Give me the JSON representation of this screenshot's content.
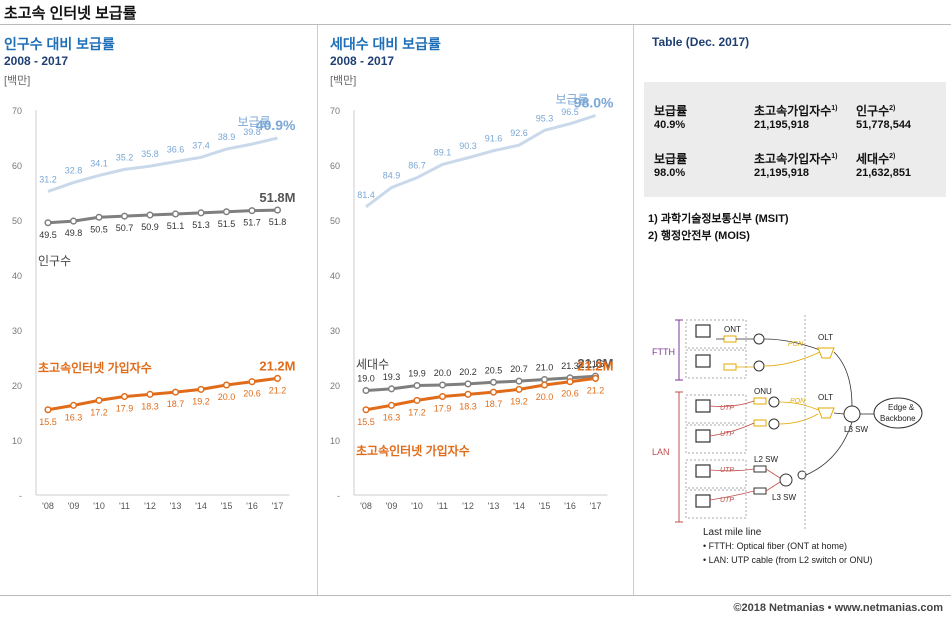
{
  "title": "초고속 인터넷 보급률",
  "left_panel": {
    "title": "인구수 대비 보급률",
    "subtitle": "2008 - 2017",
    "unit": "[백만]"
  },
  "mid_panel": {
    "title": "세대수 대비 보급률",
    "subtitle": "2008 - 2017",
    "unit": "[백만]"
  },
  "table": {
    "title": "Table (Dec. 2017)",
    "row1": {
      "rate_label": "보급률",
      "rate": "40.9%",
      "subs_label": "초고속가입자수",
      "subs_sup": "1)",
      "subs": "21,195,918",
      "base_label": "인구수",
      "base_sup": "2)",
      "base": "51,778,544"
    },
    "row2": {
      "rate_label": "보급률",
      "rate": "98.0%",
      "subs_label": "초고속가입자수",
      "subs_sup": "1)",
      "subs": "21,195,918",
      "base_label": "세대수",
      "base_sup": "2)",
      "base": "21,632,851"
    },
    "footnote1": "1) 과학기술정보통신부 (MSIT)",
    "footnote2": "2) 행정안전부 (MOIS)"
  },
  "diagram": {
    "ftth": "FTTH",
    "lan": "LAN",
    "ont": "ONT",
    "onu": "ONU",
    "olt": "OLT",
    "pon": "PON",
    "utp": "UTP",
    "l2sw": "L2 SW",
    "l3sw": "L3 SW",
    "edge": "Edge &",
    "backbone": "Backbone",
    "legend_title": "Last mile line",
    "legend_1": "• FTTH: Optical fiber (ONT at home)",
    "legend_2": "• LAN: UTP cable (from L2 switch or ONU)"
  },
  "copyright": "©2018 Netmanias • www.netmanias.com",
  "colors": {
    "blue": "#1f6fb8",
    "light_blue": "#c9d9ea",
    "gray": "#7f7f7f",
    "orange": "#e06c1a",
    "rate_label": "#7aa7d6"
  },
  "chart_data": [
    {
      "type": "line",
      "title": "인구수 대비 보급률",
      "x": [
        "'08",
        "'09",
        "'10",
        "'11",
        "'12",
        "'13",
        "'14",
        "'15",
        "'16",
        "'17"
      ],
      "ylim": [
        0,
        70
      ],
      "yticks": [
        "-",
        "10",
        "20",
        "30",
        "40",
        "50",
        "60",
        "70"
      ],
      "series": [
        {
          "name": "보급률",
          "values": [
            31.2,
            32.8,
            34.1,
            35.2,
            35.8,
            36.6,
            37.4,
            38.9,
            39.8,
            40.9
          ],
          "end_label": "40.9%",
          "plot_offset": 24
        },
        {
          "name": "인구수",
          "values": [
            49.5,
            49.8,
            50.5,
            50.7,
            50.9,
            51.1,
            51.3,
            51.5,
            51.7,
            51.8
          ],
          "end_label": "51.8M"
        },
        {
          "name": "초고속인터넷 가입자수",
          "values": [
            15.5,
            16.3,
            17.2,
            17.9,
            18.3,
            18.7,
            19.2,
            20.0,
            20.6,
            21.2
          ],
          "end_label": "21.2M"
        }
      ]
    },
    {
      "type": "line",
      "title": "세대수 대비 보급률",
      "x": [
        "'08",
        "'09",
        "'10",
        "'11",
        "'12",
        "'13",
        "'14",
        "'15",
        "'16",
        "'17"
      ],
      "ylim": [
        0,
        70
      ],
      "yticks": [
        "-",
        "10",
        "20",
        "30",
        "40",
        "50",
        "60",
        "70"
      ],
      "series": [
        {
          "name": "보급률",
          "values": [
            81.4,
            84.9,
            86.7,
            89.1,
            90.3,
            91.6,
            92.6,
            95.3,
            96.5,
            98.0
          ],
          "end_label": "98.0%",
          "plot_offset": -29
        },
        {
          "name": "세대수",
          "values": [
            19.0,
            19.3,
            19.9,
            20.0,
            20.2,
            20.5,
            20.7,
            21.0,
            21.3,
            21.6
          ],
          "end_label": "21.6M"
        },
        {
          "name": "초고속인터넷 가입자수",
          "values": [
            15.5,
            16.3,
            17.2,
            17.9,
            18.3,
            18.7,
            19.2,
            20.0,
            20.6,
            21.2
          ],
          "end_label": "21.2M"
        }
      ]
    }
  ]
}
